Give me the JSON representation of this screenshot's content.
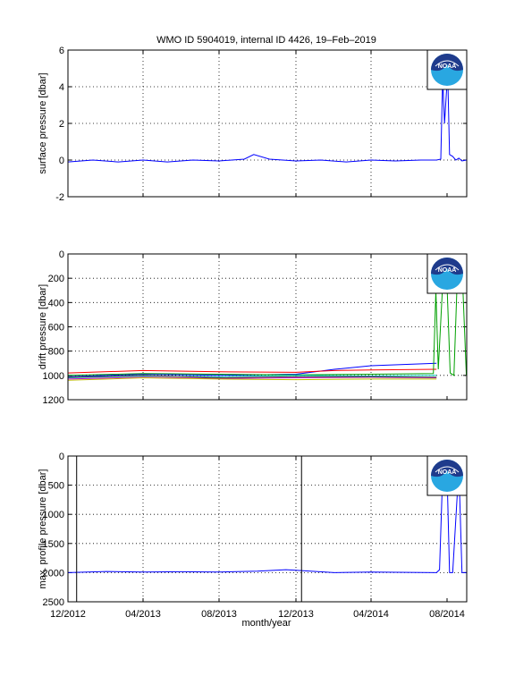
{
  "title": "WMO ID 5904019, internal ID 4426, 19–Feb–2019",
  "xlabel": "month/year",
  "x_tick_labels": [
    "12/2012",
    "04/2013",
    "08/2013",
    "12/2013",
    "04/2014",
    "08/2014"
  ],
  "logo_text": "NOAA",
  "colors": {
    "axis": "#000000",
    "grid": "#000000",
    "series_blue": "#0000ff",
    "noaa_navy": "#1f3b8c",
    "noaa_sky": "#29a7e1"
  },
  "chart_data": [
    {
      "type": "line",
      "ylabel": "surface pressure [dbar]",
      "ylim": [
        -2,
        6
      ],
      "y_reversed": false,
      "y_ticks": [
        "-2",
        "0",
        "2",
        "4",
        "6"
      ],
      "grid": true,
      "series": [
        {
          "color": "#0000ff",
          "x": [
            "2012-12-01",
            "2013-01-10",
            "2013-02-20",
            "2013-04-01",
            "2013-05-10",
            "2013-06-20",
            "2013-08-01",
            "2013-09-10",
            "2013-09-25",
            "2013-10-20",
            "2013-12-01",
            "2014-01-10",
            "2014-02-20",
            "2014-04-01",
            "2014-05-10",
            "2014-06-20",
            "2014-07-15",
            "2014-07-22",
            "2014-07-25",
            "2014-07-28",
            "2014-08-02",
            "2014-08-05",
            "2014-08-10",
            "2014-08-15",
            "2014-08-20",
            "2014-08-25",
            "2014-09-01"
          ],
          "y": [
            -0.1,
            0.0,
            -0.1,
            0.0,
            -0.1,
            0.0,
            -0.05,
            0.05,
            0.3,
            0.05,
            -0.05,
            0.0,
            -0.1,
            0.0,
            -0.05,
            0.0,
            0.0,
            0.05,
            4.5,
            2.0,
            4.8,
            0.3,
            0.2,
            0.0,
            0.1,
            -0.05,
            0.0
          ]
        }
      ]
    },
    {
      "type": "line",
      "ylabel": "drift pressure [dbar]",
      "ylim": [
        0,
        1200
      ],
      "y_reversed": true,
      "y_ticks": [
        "0",
        "200",
        "400",
        "600",
        "800",
        "1000",
        "1200"
      ],
      "grid": true,
      "series": [
        {
          "color": "#0000ff",
          "x": [
            "2012-12-01",
            "2013-04-01",
            "2013-08-01",
            "2013-12-01",
            "2014-02-01",
            "2014-04-01",
            "2014-07-15"
          ],
          "y": [
            1010,
            990,
            1000,
            990,
            950,
            920,
            900
          ]
        },
        {
          "color": "#ff0000",
          "x": [
            "2012-12-01",
            "2013-04-01",
            "2013-08-01",
            "2013-12-01",
            "2014-02-01",
            "2014-04-01",
            "2014-07-15"
          ],
          "y": [
            980,
            960,
            970,
            975,
            960,
            955,
            950
          ]
        },
        {
          "color": "#00a000",
          "x": [
            "2012-12-01",
            "2013-04-01",
            "2013-08-01",
            "2013-12-01",
            "2014-04-01",
            "2014-07-10",
            "2014-07-14",
            "2014-07-18",
            "2014-07-25",
            "2014-08-01",
            "2014-08-06",
            "2014-08-12",
            "2014-08-18",
            "2014-08-25",
            "2014-09-01"
          ],
          "y": [
            1000,
            985,
            990,
            995,
            990,
            985,
            300,
            950,
            250,
            260,
            980,
            1000,
            120,
            100,
            1000
          ]
        },
        {
          "color": "#00bfbf",
          "x": [
            "2012-12-01",
            "2013-04-01",
            "2013-08-01",
            "2013-12-01",
            "2014-04-01",
            "2014-07-15"
          ],
          "y": [
            1020,
            1005,
            1010,
            1000,
            1005,
            1000
          ]
        },
        {
          "color": "#bf00bf",
          "x": [
            "2012-12-01",
            "2013-04-01",
            "2013-08-01",
            "2013-12-01",
            "2014-04-01",
            "2014-07-15"
          ],
          "y": [
            1030,
            1015,
            1025,
            1020,
            1015,
            1020
          ]
        },
        {
          "color": "#bfbf00",
          "x": [
            "2012-12-01",
            "2013-04-01",
            "2013-08-01",
            "2013-12-01",
            "2014-04-01",
            "2014-07-15"
          ],
          "y": [
            1040,
            1020,
            1030,
            1035,
            1030,
            1030
          ]
        },
        {
          "color": "#404040",
          "x": [
            "2012-12-01",
            "2013-04-01",
            "2013-08-01",
            "2013-12-01",
            "2014-04-01",
            "2014-07-15"
          ],
          "y": [
            1015,
            1000,
            1020,
            1010,
            1010,
            1015
          ]
        }
      ]
    },
    {
      "type": "line",
      "ylabel": "max. profile pressure [dbar]",
      "ylim": [
        0,
        2500
      ],
      "y_reversed": true,
      "y_ticks": [
        "0",
        "500",
        "1000",
        "1500",
        "2000",
        "2500"
      ],
      "grid": true,
      "series": [
        {
          "color": "#0000ff",
          "x": [
            "2012-12-01",
            "2013-02-01",
            "2013-04-01",
            "2013-06-01",
            "2013-08-01",
            "2013-10-01",
            "2013-11-15",
            "2013-12-01",
            "2014-02-01",
            "2014-04-01",
            "2014-06-01",
            "2014-07-15",
            "2014-07-20",
            "2014-07-25",
            "2014-08-01",
            "2014-08-05",
            "2014-08-10",
            "2014-08-20",
            "2014-08-25",
            "2014-09-01"
          ],
          "y": [
            2000,
            1980,
            1990,
            1985,
            1990,
            1975,
            1950,
            1960,
            2000,
            1990,
            1995,
            2000,
            1950,
            300,
            300,
            2000,
            2000,
            200,
            2000,
            2000
          ]
        },
        {
          "color": "#000000",
          "vlines": [
            "2012-12-15",
            "2013-12-10"
          ]
        }
      ]
    }
  ]
}
